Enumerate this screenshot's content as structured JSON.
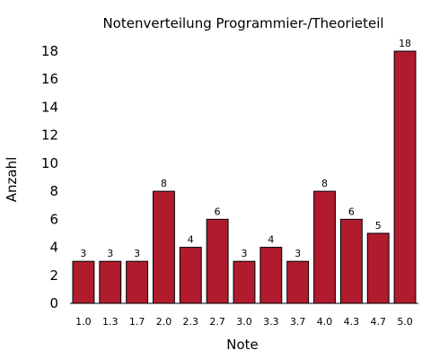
{
  "chart_data": {
    "type": "bar",
    "title": "Notenverteilung Programmier-/Theorieteil",
    "xlabel": "Note",
    "ylabel": "Anzahl",
    "categories": [
      "1.0",
      "1.3",
      "1.7",
      "2.0",
      "2.3",
      "2.7",
      "3.0",
      "3.3",
      "3.7",
      "4.0",
      "4.3",
      "4.7",
      "5.0"
    ],
    "values": [
      3,
      3,
      3,
      8,
      4,
      6,
      3,
      4,
      3,
      8,
      6,
      5,
      18
    ],
    "ylim": [
      0,
      18
    ],
    "yticks": [
      "0",
      "2",
      "4",
      "6",
      "8",
      "10",
      "12",
      "14",
      "16",
      "18"
    ],
    "grid": false,
    "bar_color": "#b01c2e",
    "data_labels": true
  }
}
